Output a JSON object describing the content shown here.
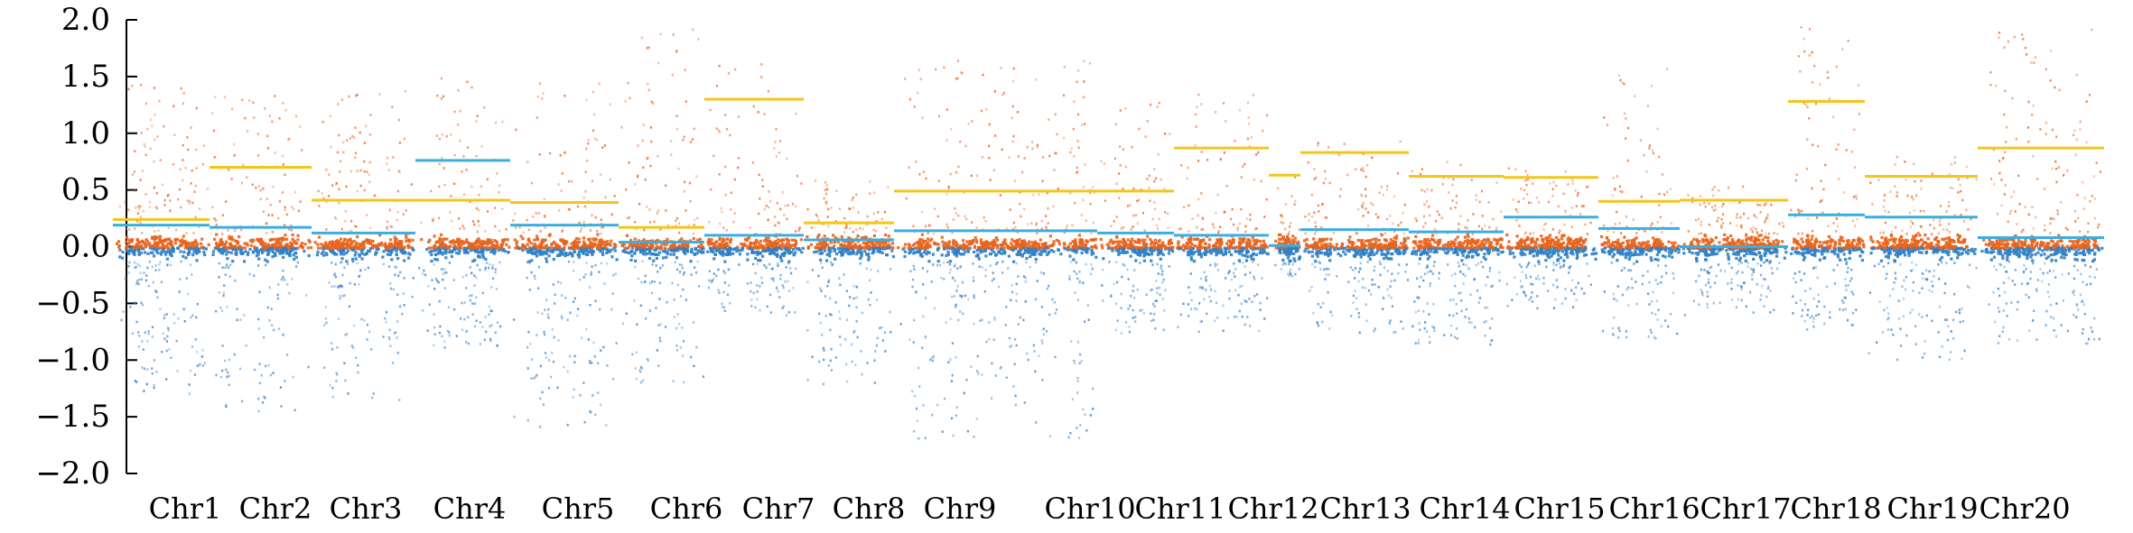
{
  "chart_data": {
    "type": "scatter",
    "title": "",
    "xlabel": "",
    "ylabel": "",
    "ylim": [
      -2.0,
      2.0
    ],
    "yticks": [
      "2.0",
      "1.5",
      "1.0",
      "0.5",
      "0.0",
      "-0.5",
      "-1.0",
      "-1.5",
      "-2.0"
    ],
    "grid": false,
    "legend": "none",
    "colors": {
      "up_points": "#e8641c",
      "down_points": "#2f7fc6",
      "up_mean_line": "#f5c518",
      "down_mean_line": "#3aaee0",
      "axis": "#000000"
    },
    "chromosomes": [
      {
        "label": "Chr1",
        "up_mean": 0.24,
        "down_mean": 0.19,
        "max": 1.45,
        "min": -1.3
      },
      {
        "label": "Chr2",
        "up_mean": 0.7,
        "down_mean": 0.17,
        "max": 1.4,
        "min": -1.45
      },
      {
        "label": "Chr3",
        "up_mean": 0.41,
        "down_mean": 0.12,
        "max": 1.4,
        "min": -1.35
      },
      {
        "label": "Chr4",
        "up_mean": 0.41,
        "down_mean": 0.76,
        "max": 1.55,
        "min": -0.95
      },
      {
        "label": "Chr5",
        "up_mean": 0.39,
        "down_mean": 0.19,
        "max": 1.45,
        "min": -1.6
      },
      {
        "label": "Chr6",
        "up_mean": 0.17,
        "down_mean": 0.04,
        "max": 1.95,
        "min": -1.2
      },
      {
        "label": "Chr7",
        "up_mean": 1.3,
        "down_mean": 0.1,
        "max": 1.65,
        "min": -0.6
      },
      {
        "label": "Chr8",
        "up_mean": 0.21,
        "down_mean": 0.06,
        "max": 0.6,
        "min": -1.25
      },
      {
        "label": "Chr9",
        "up_mean": 0.49,
        "down_mean": 0.14,
        "max": 1.65,
        "min": -1.7
      },
      {
        "label": "Chr10",
        "up_mean": 0.49,
        "down_mean": 0.12,
        "max": 1.4,
        "min": -0.8
      },
      {
        "label": "Chr11",
        "up_mean": 0.87,
        "down_mean": 0.1,
        "max": 1.35,
        "min": -0.75
      },
      {
        "label": "Chr12",
        "up_mean": 0.63,
        "down_mean": 0.01,
        "max": 0.7,
        "min": -0.25
      },
      {
        "label": "Chr13",
        "up_mean": 0.83,
        "down_mean": 0.15,
        "max": 0.95,
        "min": -0.75
      },
      {
        "label": "Chr14",
        "up_mean": 0.62,
        "down_mean": 0.13,
        "max": 0.8,
        "min": -0.9
      },
      {
        "label": "Chr15",
        "up_mean": 0.61,
        "down_mean": 0.26,
        "max": 0.7,
        "min": -0.55
      },
      {
        "label": "Chr16",
        "up_mean": 0.4,
        "down_mean": 0.16,
        "max": 1.6,
        "min": -0.8
      },
      {
        "label": "Chr17",
        "up_mean": 0.41,
        "down_mean": 0.0,
        "max": 0.55,
        "min": -0.6
      },
      {
        "label": "Chr18",
        "up_mean": 1.28,
        "down_mean": 0.28,
        "max": 2.0,
        "min": -0.75
      },
      {
        "label": "Chr19",
        "up_mean": 0.62,
        "down_mean": 0.26,
        "max": 0.8,
        "min": -1.0
      },
      {
        "label": "Chr20",
        "up_mean": 0.87,
        "down_mean": 0.08,
        "max": 1.95,
        "min": -0.85
      }
    ]
  }
}
